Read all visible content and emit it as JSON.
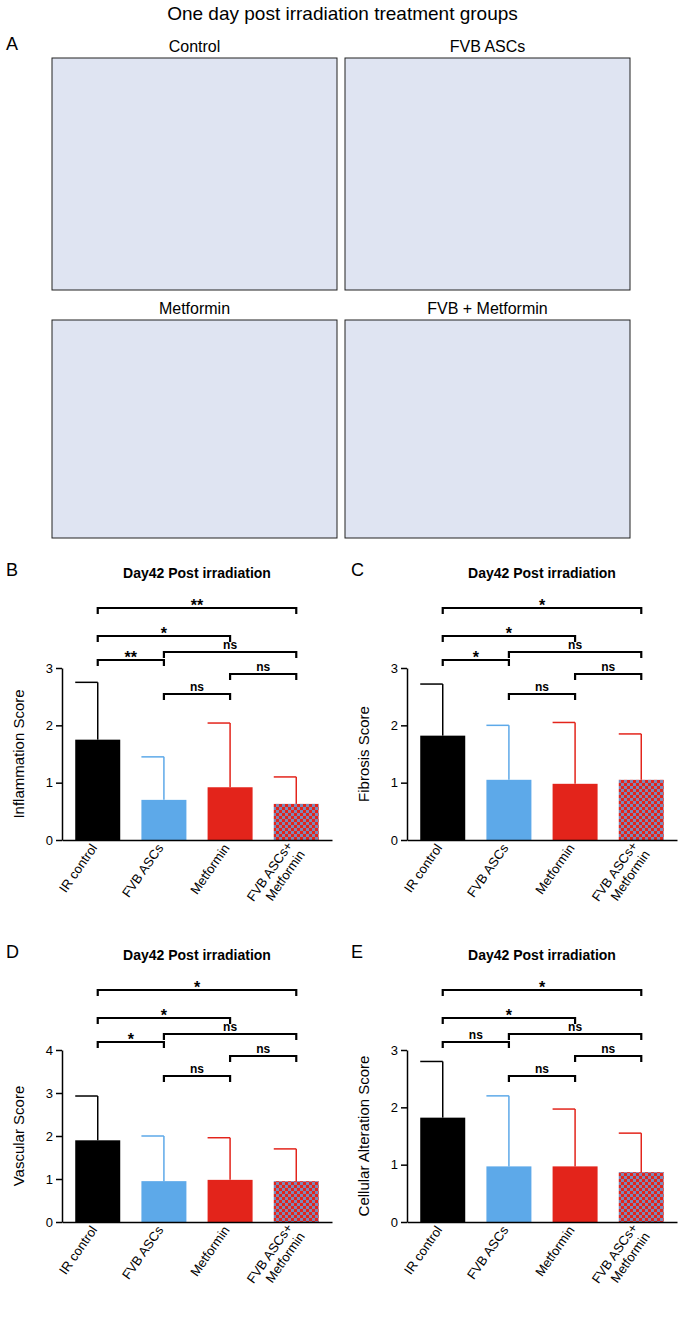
{
  "figure_title": "One day post irradiation treatment groups",
  "panel_a": {
    "label": "A",
    "images": [
      {
        "title": "Control"
      },
      {
        "title": "FVB ASCs"
      },
      {
        "title": "Metformin"
      },
      {
        "title": "FVB + Metformin"
      }
    ]
  },
  "chart_data": [
    {
      "type": "bar",
      "panel_label": "B",
      "title": "Day42 Post irradiation",
      "y_label": "Inflammation Score",
      "categories": [
        "IR control",
        "FVB ASCs",
        "Metformin",
        "FVB ASCs+ Metformin"
      ],
      "values": [
        1.75,
        0.7,
        0.92,
        0.63
      ],
      "errors": [
        1.0,
        0.75,
        1.12,
        0.47
      ],
      "colors": [
        "#000000",
        "#5da9e9",
        "#e3241b",
        "#e3241b"
      ],
      "ylim": [
        0,
        3
      ],
      "yticks": [
        0,
        1,
        2,
        3
      ],
      "comparisons": [
        {
          "pair": [
            "IR control",
            "FVB ASCs+ Metformin"
          ],
          "label": "**"
        },
        {
          "pair": [
            "IR control",
            "Metformin"
          ],
          "label": "*"
        },
        {
          "pair": [
            "IR control",
            "FVB ASCs"
          ],
          "label": "**"
        },
        {
          "pair": [
            "FVB ASCs",
            "FVB ASCs+ Metformin"
          ],
          "label": "ns"
        },
        {
          "pair": [
            "FVB ASCs",
            "Metformin"
          ],
          "label": "ns"
        },
        {
          "pair": [
            "Metformin",
            "FVB ASCs+ Metformin"
          ],
          "label": "ns"
        }
      ]
    },
    {
      "type": "bar",
      "panel_label": "C",
      "title": "Day42 Post irradiation",
      "y_label": "Fibrosis Score",
      "categories": [
        "IR control",
        "FVB ASCs",
        "Metformin",
        "FVB ASCs+ Metformin"
      ],
      "values": [
        1.82,
        1.05,
        0.98,
        1.05
      ],
      "errors": [
        0.9,
        0.95,
        1.07,
        0.8
      ],
      "colors": [
        "#000000",
        "#5da9e9",
        "#e3241b",
        "#e3241b"
      ],
      "ylim": [
        0,
        3
      ],
      "yticks": [
        0,
        1,
        2,
        3
      ],
      "comparisons": [
        {
          "pair": [
            "IR control",
            "FVB ASCs+ Metformin"
          ],
          "label": "*"
        },
        {
          "pair": [
            "IR control",
            "Metformin"
          ],
          "label": "*"
        },
        {
          "pair": [
            "IR control",
            "FVB ASCs"
          ],
          "label": "*"
        },
        {
          "pair": [
            "FVB ASCs",
            "FVB ASCs+ Metformin"
          ],
          "label": "ns"
        },
        {
          "pair": [
            "FVB ASCs",
            "Metformin"
          ],
          "label": "ns"
        },
        {
          "pair": [
            "Metformin",
            "FVB ASCs+ Metformin"
          ],
          "label": "ns"
        }
      ]
    },
    {
      "type": "bar",
      "panel_label": "D",
      "title": "Day42 Post irradiation",
      "y_label": "Vascular Score",
      "categories": [
        "IR control",
        "FVB ASCs",
        "Metformin",
        "FVB ASCs+ Metformin"
      ],
      "values": [
        1.9,
        0.95,
        0.98,
        0.95
      ],
      "errors": [
        1.03,
        1.05,
        0.98,
        0.75
      ],
      "colors": [
        "#000000",
        "#5da9e9",
        "#e3241b",
        "#e3241b"
      ],
      "ylim": [
        0,
        4
      ],
      "yticks": [
        0,
        1,
        2,
        3,
        4
      ],
      "comparisons": [
        {
          "pair": [
            "IR control",
            "FVB ASCs+ Metformin"
          ],
          "label": "*"
        },
        {
          "pair": [
            "IR control",
            "Metformin"
          ],
          "label": "*"
        },
        {
          "pair": [
            "IR control",
            "FVB ASCs"
          ],
          "label": "*"
        },
        {
          "pair": [
            "FVB ASCs",
            "FVB ASCs+ Metformin"
          ],
          "label": "ns"
        },
        {
          "pair": [
            "FVB ASCs",
            "Metformin"
          ],
          "label": "ns"
        },
        {
          "pair": [
            "Metformin",
            "FVB ASCs+ Metformin"
          ],
          "label": "ns"
        }
      ]
    },
    {
      "type": "bar",
      "panel_label": "E",
      "title": "Day42 Post irradiation",
      "y_label": "Cellular Alteration Score",
      "categories": [
        "IR control",
        "FVB ASCs",
        "Metformin",
        "FVB ASCs+ Metformin"
      ],
      "values": [
        1.82,
        0.97,
        0.97,
        0.87
      ],
      "errors": [
        0.98,
        1.23,
        1.0,
        0.68
      ],
      "colors": [
        "#000000",
        "#5da9e9",
        "#e3241b",
        "#e3241b"
      ],
      "ylim": [
        0,
        3
      ],
      "yticks": [
        0,
        1,
        2,
        3
      ],
      "comparisons": [
        {
          "pair": [
            "IR control",
            "FVB ASCs+ Metformin"
          ],
          "label": "*"
        },
        {
          "pair": [
            "IR control",
            "Metformin"
          ],
          "label": "*"
        },
        {
          "pair": [
            "IR control",
            "FVB ASCs"
          ],
          "label": "ns"
        },
        {
          "pair": [
            "FVB ASCs",
            "FVB ASCs+ Metformin"
          ],
          "label": "ns"
        },
        {
          "pair": [
            "FVB ASCs",
            "Metformin"
          ],
          "label": "ns"
        },
        {
          "pair": [
            "Metformin",
            "FVB ASCs+ Metformin"
          ],
          "label": "ns"
        }
      ]
    }
  ]
}
